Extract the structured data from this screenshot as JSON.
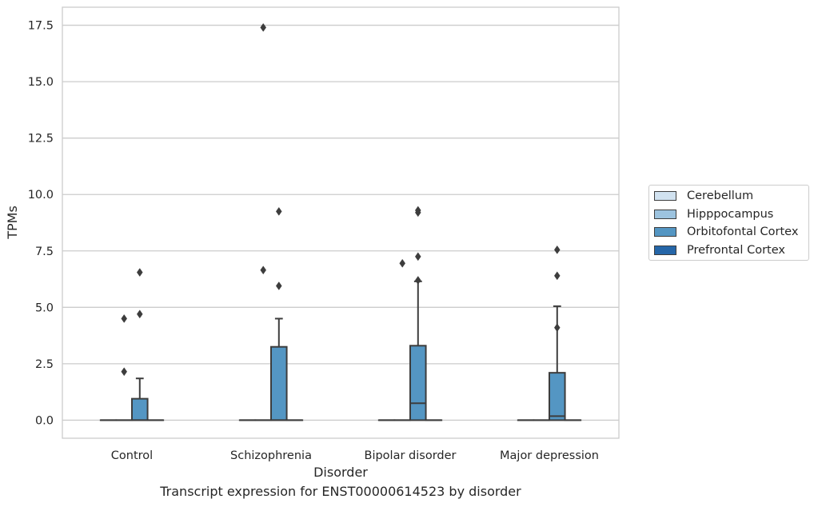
{
  "chart_data": {
    "type": "box",
    "caption": "Transcript expression for ENST00000614523 by disorder",
    "xlabel": "Disorder",
    "ylabel": "TPMs",
    "categories": [
      "Control",
      "Schizophrenia",
      "Bipolar disorder",
      "Major depression"
    ],
    "ylim": [
      -0.8,
      18.3
    ],
    "yticks": [
      0.0,
      2.5,
      5.0,
      7.5,
      10.0,
      12.5,
      15.0,
      17.5
    ],
    "ytick_labels": [
      "0.0",
      "2.5",
      "5.0",
      "7.5",
      "10.0",
      "12.5",
      "15.0",
      "17.5"
    ],
    "grid": "horizontal",
    "legend_position": "right",
    "series": [
      {
        "name": "Cerebellum",
        "color": "#d1e2f0",
        "boxes": [
          {
            "category": "Control",
            "q1": 0,
            "median": 0,
            "q3": 0,
            "whisker_low": 0,
            "whisker_high": 0,
            "outliers": []
          },
          {
            "category": "Schizophrenia",
            "q1": 0,
            "median": 0,
            "q3": 0,
            "whisker_low": 0,
            "whisker_high": 0,
            "outliers": []
          },
          {
            "category": "Bipolar disorder",
            "q1": 0,
            "median": 0,
            "q3": 0,
            "whisker_low": 0,
            "whisker_high": 0,
            "outliers": []
          },
          {
            "category": "Major depression",
            "q1": 0,
            "median": 0,
            "q3": 0,
            "whisker_low": 0,
            "whisker_high": 0,
            "outliers": []
          }
        ]
      },
      {
        "name": "Hipppocampus",
        "color": "#9cc3df",
        "boxes": [
          {
            "category": "Control",
            "q1": 0,
            "median": 0,
            "q3": 0,
            "whisker_low": 0,
            "whisker_high": 0,
            "outliers": [
              4.5,
              2.15
            ]
          },
          {
            "category": "Schizophrenia",
            "q1": 0,
            "median": 0,
            "q3": 0,
            "whisker_low": 0,
            "whisker_high": 0,
            "outliers": [
              17.4,
              6.65
            ]
          },
          {
            "category": "Bipolar disorder",
            "q1": 0,
            "median": 0,
            "q3": 0,
            "whisker_low": 0,
            "whisker_high": 0,
            "outliers": [
              6.95
            ]
          },
          {
            "category": "Major depression",
            "q1": 0,
            "median": 0,
            "q3": 0,
            "whisker_low": 0,
            "whisker_high": 0,
            "outliers": []
          }
        ]
      },
      {
        "name": "Orbitofontal Cortex",
        "color": "#5496c3",
        "boxes": [
          {
            "category": "Control",
            "q1": 0,
            "median": 0,
            "q3": 0.95,
            "whisker_low": 0,
            "whisker_high": 1.85,
            "outliers": [
              6.55,
              4.7
            ]
          },
          {
            "category": "Schizophrenia",
            "q1": 0,
            "median": 0,
            "q3": 3.25,
            "whisker_low": 0,
            "whisker_high": 4.5,
            "outliers": [
              9.25,
              5.95
            ]
          },
          {
            "category": "Bipolar disorder",
            "q1": 0,
            "median": 0.75,
            "q3": 3.3,
            "whisker_low": 0,
            "whisker_high": 6.15,
            "outliers": [
              9.2,
              9.3,
              7.25,
              6.2
            ]
          },
          {
            "category": "Major depression",
            "q1": 0,
            "median": 0.18,
            "q3": 2.1,
            "whisker_low": 0,
            "whisker_high": 5.05,
            "outliers": [
              7.55,
              6.4,
              4.1
            ]
          }
        ]
      },
      {
        "name": "Prefrontal Cortex",
        "color": "#2566a8",
        "boxes": [
          {
            "category": "Control",
            "q1": 0,
            "median": 0,
            "q3": 0,
            "whisker_low": 0,
            "whisker_high": 0,
            "outliers": []
          },
          {
            "category": "Schizophrenia",
            "q1": 0,
            "median": 0,
            "q3": 0,
            "whisker_low": 0,
            "whisker_high": 0,
            "outliers": []
          },
          {
            "category": "Bipolar disorder",
            "q1": 0,
            "median": 0,
            "q3": 0,
            "whisker_low": 0,
            "whisker_high": 0,
            "outliers": []
          },
          {
            "category": "Major depression",
            "q1": 0,
            "median": 0,
            "q3": 0,
            "whisker_low": 0,
            "whisker_high": 0,
            "outliers": []
          }
        ]
      }
    ]
  }
}
